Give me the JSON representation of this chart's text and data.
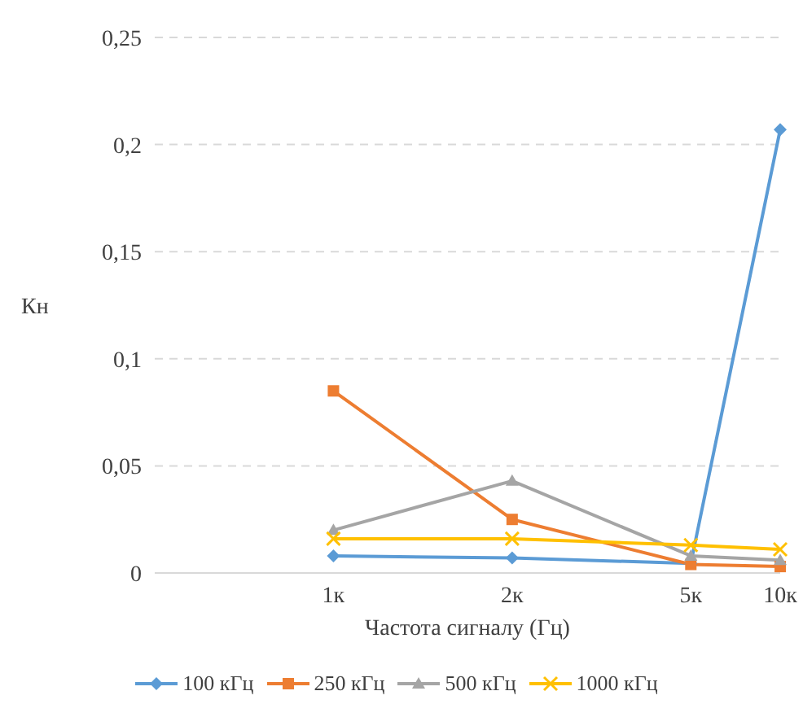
{
  "chart_data": {
    "type": "line",
    "xlabel": "Частота сигналу (Гц)",
    "ylabel": "Кн",
    "categories": [
      null,
      null,
      "1к",
      null,
      "2к",
      null,
      "5к",
      "10к"
    ],
    "series": [
      {
        "name": "100 кГц",
        "color": "#5b9bd5",
        "marker": "diamond",
        "values": [
          null,
          null,
          0.008,
          null,
          0.007,
          null,
          0.0045,
          0.207
        ]
      },
      {
        "name": "250 кГц",
        "color": "#ed7d31",
        "marker": "square",
        "values": [
          null,
          null,
          0.085,
          null,
          0.025,
          null,
          0.004,
          0.003
        ]
      },
      {
        "name": "500 кГц",
        "color": "#a5a5a5",
        "marker": "triangle",
        "values": [
          null,
          null,
          0.02,
          null,
          0.043,
          null,
          0.008,
          0.006
        ]
      },
      {
        "name": "1000 кГц",
        "color": "#ffc000",
        "marker": "cross",
        "values": [
          null,
          null,
          0.016,
          null,
          0.016,
          null,
          0.013,
          0.011
        ]
      }
    ],
    "ylim": [
      0,
      0.25
    ],
    "yticks": [
      0,
      {
        "value": 0.05,
        "label": "0,05"
      },
      {
        "value": 0.1,
        "label": "0,1"
      },
      {
        "value": 0.15,
        "label": "0,15"
      },
      {
        "value": 0.2,
        "label": "0,2"
      },
      {
        "value": 0.25,
        "label": "0,25"
      }
    ],
    "grid": "y",
    "legend": "bottom",
    "line_style": "solid"
  }
}
